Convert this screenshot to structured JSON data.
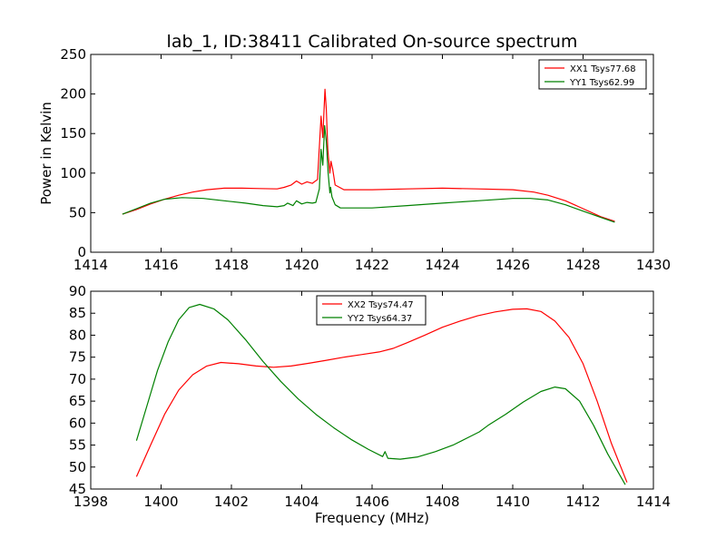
{
  "chart_data": [
    {
      "type": "line",
      "title": "lab_1, ID:38411 Calibrated On-source spectrum",
      "xlabel": "",
      "ylabel": "Power in Kelvin",
      "xlim": [
        1414,
        1430
      ],
      "ylim": [
        0,
        250
      ],
      "xticks": [
        1414,
        1416,
        1418,
        1420,
        1422,
        1424,
        1426,
        1428,
        1430
      ],
      "yticks": [
        0,
        50,
        100,
        150,
        200,
        250
      ],
      "grid": false,
      "legend": "top-right",
      "series": [
        {
          "name": "XX1 Tsys77.68",
          "color": "#ff0000",
          "points": [
            [
              1414.9,
              48
            ],
            [
              1415.3,
              54
            ],
            [
              1415.7,
              61
            ],
            [
              1416.1,
              67
            ],
            [
              1416.5,
              72
            ],
            [
              1416.9,
              76
            ],
            [
              1417.3,
              79
            ],
            [
              1417.8,
              81
            ],
            [
              1418.3,
              81
            ],
            [
              1418.8,
              80.5
            ],
            [
              1419.3,
              80
            ],
            [
              1419.5,
              82
            ],
            [
              1419.7,
              85
            ],
            [
              1419.85,
              90
            ],
            [
              1420.0,
              86
            ],
            [
              1420.15,
              89
            ],
            [
              1420.3,
              87
            ],
            [
              1420.45,
              92
            ],
            [
              1420.55,
              172
            ],
            [
              1420.6,
              145
            ],
            [
              1420.66,
              206
            ],
            [
              1420.7,
              180
            ],
            [
              1420.74,
              130
            ],
            [
              1420.8,
              100
            ],
            [
              1420.83,
              115
            ],
            [
              1420.88,
              105
            ],
            [
              1420.95,
              85
            ],
            [
              1421.2,
              79
            ],
            [
              1422.0,
              79
            ],
            [
              1423.0,
              80
            ],
            [
              1424.0,
              81
            ],
            [
              1425.0,
              80
            ],
            [
              1426.0,
              79
            ],
            [
              1426.6,
              76
            ],
            [
              1427.0,
              72
            ],
            [
              1427.5,
              65
            ],
            [
              1428.0,
              55
            ],
            [
              1428.5,
              45
            ],
            [
              1428.9,
              39
            ]
          ]
        },
        {
          "name": "YY1 Tsys62.99",
          "color": "#008000",
          "points": [
            [
              1414.9,
              48
            ],
            [
              1415.3,
              55
            ],
            [
              1415.7,
              62
            ],
            [
              1416.1,
              67
            ],
            [
              1416.6,
              69
            ],
            [
              1417.2,
              68
            ],
            [
              1417.8,
              65
            ],
            [
              1418.4,
              62
            ],
            [
              1418.9,
              59
            ],
            [
              1419.3,
              57.5
            ],
            [
              1419.5,
              59
            ],
            [
              1419.6,
              62
            ],
            [
              1419.75,
              59
            ],
            [
              1419.85,
              65
            ],
            [
              1420.0,
              61
            ],
            [
              1420.15,
              63
            ],
            [
              1420.3,
              62
            ],
            [
              1420.4,
              63
            ],
            [
              1420.5,
              80
            ],
            [
              1420.55,
              130
            ],
            [
              1420.6,
              110
            ],
            [
              1420.65,
              160
            ],
            [
              1420.7,
              140
            ],
            [
              1420.75,
              100
            ],
            [
              1420.8,
              75
            ],
            [
              1420.82,
              82
            ],
            [
              1420.86,
              70
            ],
            [
              1420.95,
              60
            ],
            [
              1421.1,
              56
            ],
            [
              1422.0,
              56
            ],
            [
              1423.0,
              59
            ],
            [
              1424.0,
              62
            ],
            [
              1425.0,
              65
            ],
            [
              1426.0,
              68
            ],
            [
              1426.5,
              68
            ],
            [
              1427.0,
              66
            ],
            [
              1427.5,
              60
            ],
            [
              1428.0,
              52
            ],
            [
              1428.5,
              44
            ],
            [
              1428.9,
              38
            ]
          ]
        }
      ]
    },
    {
      "type": "line",
      "title": "",
      "xlabel": "Frequency (MHz)",
      "ylabel": "",
      "xlim": [
        1398,
        1414
      ],
      "ylim": [
        45,
        90
      ],
      "xticks": [
        1398,
        1400,
        1402,
        1404,
        1406,
        1408,
        1410,
        1412,
        1414
      ],
      "yticks": [
        45,
        50,
        55,
        60,
        65,
        70,
        75,
        80,
        85,
        90
      ],
      "grid": false,
      "legend": "top-center",
      "series": [
        {
          "name": "XX2 Tsys74.47",
          "color": "#ff0000",
          "points": [
            [
              1399.3,
              47.8
            ],
            [
              1399.7,
              55
            ],
            [
              1400.1,
              62
            ],
            [
              1400.5,
              67.5
            ],
            [
              1400.9,
              71
            ],
            [
              1401.3,
              73
            ],
            [
              1401.7,
              73.8
            ],
            [
              1402.2,
              73.5
            ],
            [
              1402.7,
              73
            ],
            [
              1403.2,
              72.7
            ],
            [
              1403.7,
              73
            ],
            [
              1404.2,
              73.6
            ],
            [
              1404.7,
              74.3
            ],
            [
              1405.2,
              75
            ],
            [
              1405.7,
              75.6
            ],
            [
              1406.2,
              76.2
            ],
            [
              1406.6,
              77
            ],
            [
              1407.0,
              78.3
            ],
            [
              1407.5,
              80
            ],
            [
              1408.0,
              81.8
            ],
            [
              1408.5,
              83.2
            ],
            [
              1409.0,
              84.4
            ],
            [
              1409.5,
              85.3
            ],
            [
              1410.0,
              85.9
            ],
            [
              1410.4,
              86
            ],
            [
              1410.8,
              85.4
            ],
            [
              1411.2,
              83.2
            ],
            [
              1411.6,
              79.5
            ],
            [
              1412.0,
              73.5
            ],
            [
              1412.4,
              65
            ],
            [
              1412.8,
              55.5
            ],
            [
              1413.25,
              46.5
            ]
          ]
        },
        {
          "name": "YY2 Tsys64.37",
          "color": "#008000",
          "points": [
            [
              1399.3,
              56
            ],
            [
              1399.6,
              64
            ],
            [
              1399.9,
              72
            ],
            [
              1400.2,
              78.5
            ],
            [
              1400.5,
              83.5
            ],
            [
              1400.8,
              86.3
            ],
            [
              1401.1,
              87
            ],
            [
              1401.5,
              86
            ],
            [
              1401.9,
              83.5
            ],
            [
              1402.4,
              79
            ],
            [
              1402.9,
              74
            ],
            [
              1403.4,
              69.5
            ],
            [
              1403.9,
              65.5
            ],
            [
              1404.4,
              62
            ],
            [
              1404.9,
              59
            ],
            [
              1405.4,
              56.3
            ],
            [
              1405.9,
              54
            ],
            [
              1406.3,
              52.4
            ],
            [
              1406.37,
              53.5
            ],
            [
              1406.45,
              52
            ],
            [
              1406.8,
              51.8
            ],
            [
              1407.3,
              52.3
            ],
            [
              1407.8,
              53.5
            ],
            [
              1408.3,
              55
            ],
            [
              1408.8,
              57
            ],
            [
              1409.05,
              58
            ],
            [
              1409.3,
              59.5
            ],
            [
              1409.8,
              62
            ],
            [
              1410.3,
              64.8
            ],
            [
              1410.8,
              67.2
            ],
            [
              1411.2,
              68.2
            ],
            [
              1411.5,
              67.8
            ],
            [
              1411.9,
              65
            ],
            [
              1412.3,
              59.5
            ],
            [
              1412.7,
              53
            ],
            [
              1413.2,
              46
            ]
          ]
        }
      ]
    }
  ]
}
